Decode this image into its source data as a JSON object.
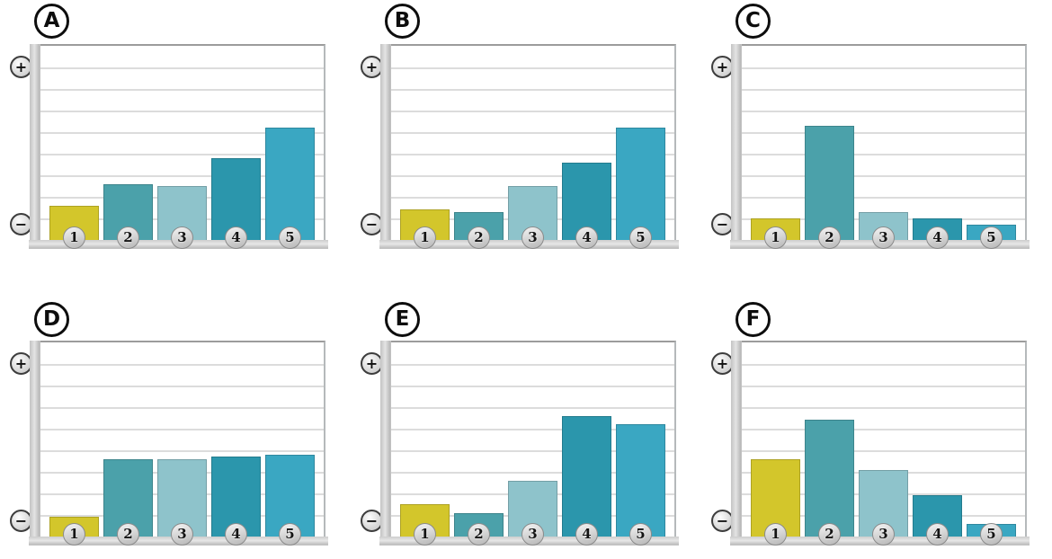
{
  "icons": {
    "plus_glyph": "+",
    "minus_glyph": "−"
  },
  "style": {
    "bar_colors": [
      "#d3c62b",
      "#4ba1aa",
      "#8ec3cb",
      "#2b96ac",
      "#3aa7c2"
    ],
    "axis_bar_color": "#cccccc",
    "gridline_color": "#dcdcdc",
    "frame_color": "#9c9c9c",
    "label_circle_border": "#0d0d0d"
  },
  "chart_data": [
    {
      "id": "A",
      "type": "bar",
      "title": "",
      "xlabel": "",
      "ylabel": "",
      "categories": [
        "1",
        "2",
        "3",
        "4",
        "5"
      ],
      "values": [
        1.6,
        2.6,
        2.5,
        3.8,
        5.2
      ],
      "ylim": [
        0,
        9
      ],
      "grid_intervals": 9,
      "grid": "on",
      "legend": "none",
      "y_axis_top_symbol": "+",
      "y_axis_bottom_symbol": "−"
    },
    {
      "id": "B",
      "type": "bar",
      "title": "",
      "xlabel": "",
      "ylabel": "",
      "categories": [
        "1",
        "2",
        "3",
        "4",
        "5"
      ],
      "values": [
        1.4,
        1.3,
        2.5,
        3.6,
        5.2
      ],
      "ylim": [
        0,
        9
      ],
      "grid_intervals": 9,
      "grid": "on",
      "legend": "none",
      "y_axis_top_symbol": "+",
      "y_axis_bottom_symbol": "−"
    },
    {
      "id": "C",
      "type": "bar",
      "title": "",
      "xlabel": "",
      "ylabel": "",
      "categories": [
        "1",
        "2",
        "3",
        "4",
        "5"
      ],
      "values": [
        1.0,
        5.3,
        1.3,
        1.0,
        0.7
      ],
      "ylim": [
        0,
        9
      ],
      "grid_intervals": 9,
      "grid": "on",
      "legend": "none",
      "y_axis_top_symbol": "+",
      "y_axis_bottom_symbol": "−"
    },
    {
      "id": "D",
      "type": "bar",
      "title": "",
      "xlabel": "",
      "ylabel": "",
      "categories": [
        "1",
        "2",
        "3",
        "4",
        "5"
      ],
      "values": [
        0.9,
        3.6,
        3.6,
        3.7,
        3.8
      ],
      "ylim": [
        0,
        9
      ],
      "grid_intervals": 9,
      "grid": "on",
      "legend": "none",
      "y_axis_top_symbol": "+",
      "y_axis_bottom_symbol": "−"
    },
    {
      "id": "E",
      "type": "bar",
      "title": "",
      "xlabel": "",
      "ylabel": "",
      "categories": [
        "1",
        "2",
        "3",
        "4",
        "5"
      ],
      "values": [
        1.5,
        1.1,
        2.6,
        5.6,
        5.2
      ],
      "ylim": [
        0,
        9
      ],
      "grid_intervals": 9,
      "grid": "on",
      "legend": "none",
      "y_axis_top_symbol": "+",
      "y_axis_bottom_symbol": "−"
    },
    {
      "id": "F",
      "type": "bar",
      "title": "",
      "xlabel": "",
      "ylabel": "",
      "categories": [
        "1",
        "2",
        "3",
        "4",
        "5"
      ],
      "values": [
        3.6,
        5.4,
        3.1,
        1.9,
        0.6
      ],
      "ylim": [
        0,
        9
      ],
      "grid_intervals": 9,
      "grid": "on",
      "legend": "none",
      "y_axis_top_symbol": "+",
      "y_axis_bottom_symbol": "−"
    }
  ]
}
